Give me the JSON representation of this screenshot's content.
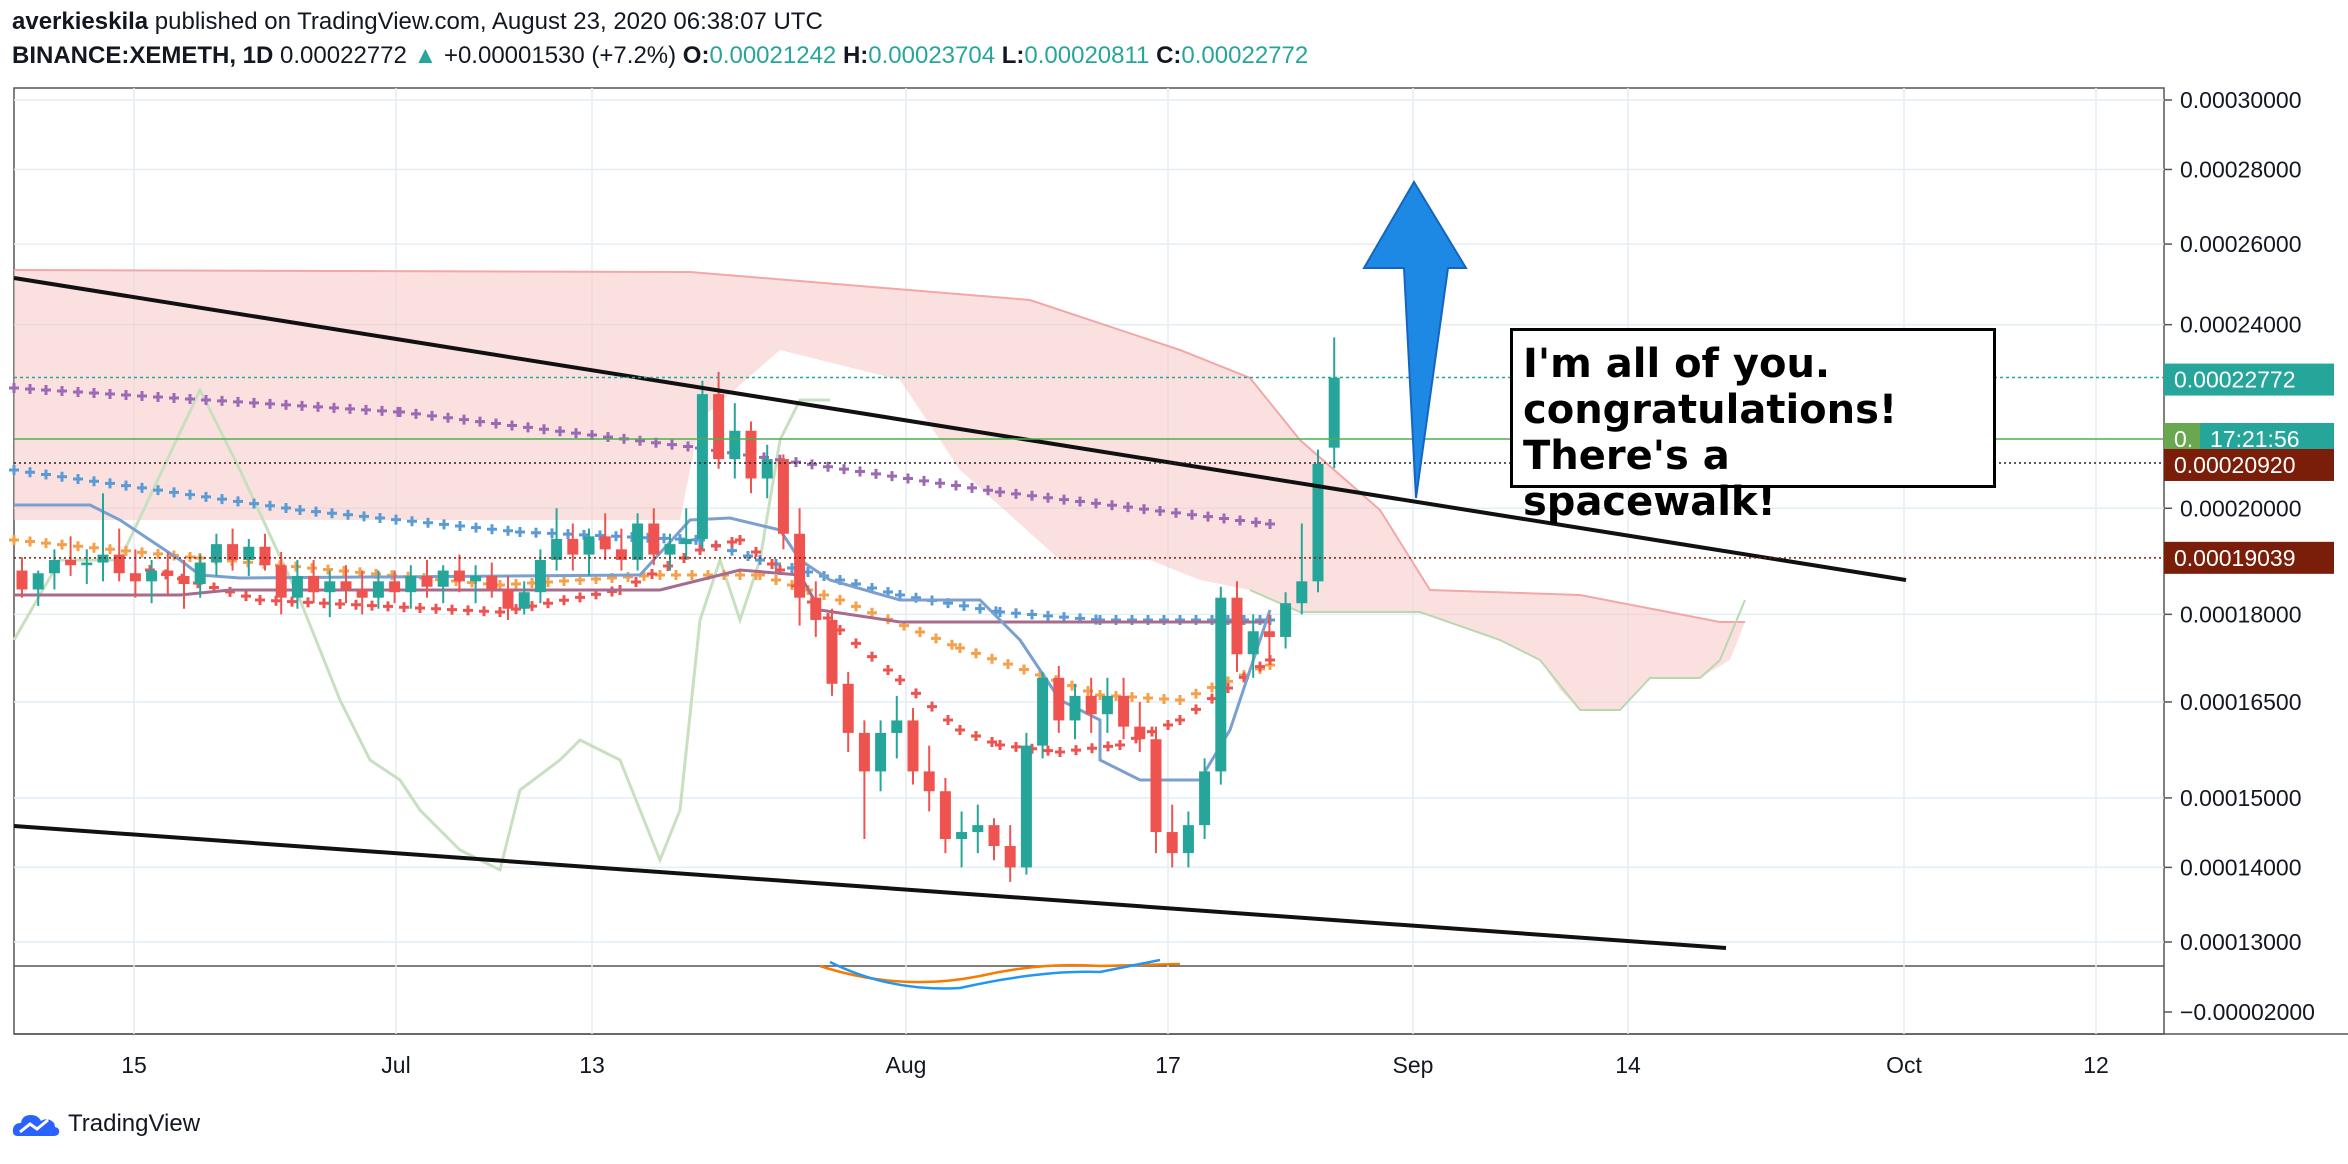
{
  "header": {
    "author": "averkieskila",
    "published": "published on TradingView.com, August 23, 2020 06:38:07 UTC",
    "symbol": "BINANCE:XEMETH, 1D",
    "price": "0.00022772",
    "change_arrow": "▲",
    "change": "+0.00001530 (+7.2%)",
    "o_label": "O:",
    "o": "0.00021242",
    "h_label": "H:",
    "h": "0.00023704",
    "l_label": "L:",
    "l": "0.00020811",
    "c_label": "C:",
    "c": "0.00022772"
  },
  "annotation": {
    "line1": "I'm all of you.",
    "line2": "congratulations!",
    "line3": "There's a spacewalk!"
  },
  "footer": {
    "brand": "TradingView",
    "logo_icon": "tradingview-cloud-icon"
  },
  "colors": {
    "up": "#26a69a",
    "down": "#ef5350",
    "cloud": "#f8c7c7",
    "purple": "#9c6ab5",
    "blue": "#5b9bd5",
    "orange": "#f5a04b",
    "red": "#ef5350",
    "arrow": "#1e88e5",
    "green_line": "#4caf50"
  },
  "chart_data": {
    "type": "candlestick",
    "y_axis": {
      "scale": "log",
      "ticks": [
        "0.00030000",
        "0.00028000",
        "0.00026000",
        "0.00024000",
        "0.00020000",
        "0.00018000",
        "0.00016500",
        "0.00015000",
        "0.00014000",
        "0.00013000"
      ],
      "price_labels": [
        {
          "text": "0.00022772",
          "value": 0.00022772,
          "bg": "#26a69a"
        },
        {
          "text": "0.",
          "value": 0.000215,
          "bg": "#6aa84f"
        },
        {
          "text": "17:21:56",
          "value": 0.000215,
          "bg": "#26a69a"
        },
        {
          "text": "0.00020920",
          "value": 0.0002092,
          "bg": "#7a1e0a"
        },
        {
          "text": "0.00019039",
          "value": 0.00019039,
          "bg": "#7a1e0a"
        }
      ]
    },
    "indicator_axis": {
      "ticks": [
        "−0.00002000"
      ]
    },
    "x_axis": {
      "ticks": [
        "15",
        "Jul",
        "13",
        "Aug",
        "17",
        "Sep",
        "14",
        "Oct",
        "12"
      ]
    },
    "candles": [
      {
        "o": 0.000188,
        "h": 0.0001905,
        "l": 0.000183,
        "c": 0.0001845
      },
      {
        "o": 0.0001845,
        "h": 0.000188,
        "l": 0.0001815,
        "c": 0.0001875
      },
      {
        "o": 0.0001875,
        "h": 0.000192,
        "l": 0.0001845,
        "c": 0.00019
      },
      {
        "o": 0.00019,
        "h": 0.0001945,
        "l": 0.000187,
        "c": 0.000189
      },
      {
        "o": 0.000189,
        "h": 0.000192,
        "l": 0.0001855,
        "c": 0.0001895
      },
      {
        "o": 0.0001895,
        "h": 0.000203,
        "l": 0.000186,
        "c": 0.000191
      },
      {
        "o": 0.000191,
        "h": 0.000196,
        "l": 0.000186,
        "c": 0.0001875
      },
      {
        "o": 0.0001875,
        "h": 0.000192,
        "l": 0.000183,
        "c": 0.000186
      },
      {
        "o": 0.000186,
        "h": 0.00019,
        "l": 0.000182,
        "c": 0.000188
      },
      {
        "o": 0.000188,
        "h": 0.0001915,
        "l": 0.0001835,
        "c": 0.000187
      },
      {
        "o": 0.000187,
        "h": 0.00019,
        "l": 0.000181,
        "c": 0.0001855
      },
      {
        "o": 0.0001855,
        "h": 0.000191,
        "l": 0.000183,
        "c": 0.0001895
      },
      {
        "o": 0.0001895,
        "h": 0.000195,
        "l": 0.000187,
        "c": 0.000193
      },
      {
        "o": 0.000193,
        "h": 0.000196,
        "l": 0.000188,
        "c": 0.00019
      },
      {
        "o": 0.00019,
        "h": 0.000194,
        "l": 0.000187,
        "c": 0.0001925
      },
      {
        "o": 0.0001925,
        "h": 0.000195,
        "l": 0.000188,
        "c": 0.000189
      },
      {
        "o": 0.000189,
        "h": 0.0001915,
        "l": 0.00018,
        "c": 0.000183
      },
      {
        "o": 0.000183,
        "h": 0.00019,
        "l": 0.000181,
        "c": 0.000187
      },
      {
        "o": 0.000187,
        "h": 0.00019,
        "l": 0.000182,
        "c": 0.000184
      },
      {
        "o": 0.000184,
        "h": 0.000188,
        "l": 0.0001795,
        "c": 0.000186
      },
      {
        "o": 0.000186,
        "h": 0.000189,
        "l": 0.000182,
        "c": 0.0001845
      },
      {
        "o": 0.0001845,
        "h": 0.000188,
        "l": 0.00018,
        "c": 0.000183
      },
      {
        "o": 0.000183,
        "h": 0.000188,
        "l": 0.000181,
        "c": 0.000186
      },
      {
        "o": 0.000186,
        "h": 0.000188,
        "l": 0.000182,
        "c": 0.000184
      },
      {
        "o": 0.000184,
        "h": 0.000189,
        "l": 0.000181,
        "c": 0.000187
      },
      {
        "o": 0.000187,
        "h": 0.00019,
        "l": 0.000183,
        "c": 0.000185
      },
      {
        "o": 0.000185,
        "h": 0.000189,
        "l": 0.000182,
        "c": 0.000188
      },
      {
        "o": 0.000188,
        "h": 0.000191,
        "l": 0.000184,
        "c": 0.000186
      },
      {
        "o": 0.000186,
        "h": 0.000189,
        "l": 0.000182,
        "c": 0.000187
      },
      {
        "o": 0.000187,
        "h": 0.0001895,
        "l": 0.000183,
        "c": 0.0001845
      },
      {
        "o": 0.0001845,
        "h": 0.000187,
        "l": 0.000179,
        "c": 0.000181
      },
      {
        "o": 0.000181,
        "h": 0.000186,
        "l": 0.00018,
        "c": 0.000184
      },
      {
        "o": 0.000184,
        "h": 0.000192,
        "l": 0.000182,
        "c": 0.00019
      },
      {
        "o": 0.00019,
        "h": 0.0002,
        "l": 0.000188,
        "c": 0.000194
      },
      {
        "o": 0.000194,
        "h": 0.000197,
        "l": 0.000188,
        "c": 0.000191
      },
      {
        "o": 0.000191,
        "h": 0.000196,
        "l": 0.000187,
        "c": 0.0001945
      },
      {
        "o": 0.0001945,
        "h": 0.000199,
        "l": 0.00019,
        "c": 0.000192
      },
      {
        "o": 0.000192,
        "h": 0.000196,
        "l": 0.000188,
        "c": 0.00019
      },
      {
        "o": 0.00019,
        "h": 0.000199,
        "l": 0.000188,
        "c": 0.000197
      },
      {
        "o": 0.000197,
        "h": 0.0002,
        "l": 0.000189,
        "c": 0.000191
      },
      {
        "o": 0.000191,
        "h": 0.000195,
        "l": 0.000188,
        "c": 0.000193
      },
      {
        "o": 0.000193,
        "h": 0.0002,
        "l": 0.00019,
        "c": 0.000194
      },
      {
        "o": 0.000194,
        "h": 0.000227,
        "l": 0.000192,
        "c": 0.000224
      },
      {
        "o": 0.000224,
        "h": 0.000229,
        "l": 0.000208,
        "c": 0.00021
      },
      {
        "o": 0.00021,
        "h": 0.000222,
        "l": 0.000206,
        "c": 0.000216
      },
      {
        "o": 0.000216,
        "h": 0.000218,
        "l": 0.000203,
        "c": 0.000206
      },
      {
        "o": 0.000206,
        "h": 0.000213,
        "l": 0.000202,
        "c": 0.00021
      },
      {
        "o": 0.00021,
        "h": 0.000211,
        "l": 0.000192,
        "c": 0.000195
      },
      {
        "o": 0.000195,
        "h": 0.0002,
        "l": 0.000178,
        "c": 0.000183
      },
      {
        "o": 0.000183,
        "h": 0.000186,
        "l": 0.000176,
        "c": 0.000179
      },
      {
        "o": 0.000179,
        "h": 0.000181,
        "l": 0.000166,
        "c": 0.000168
      },
      {
        "o": 0.000168,
        "h": 0.00017,
        "l": 0.000157,
        "c": 0.00016
      },
      {
        "o": 0.00016,
        "h": 0.000162,
        "l": 0.000144,
        "c": 0.000154
      },
      {
        "o": 0.000154,
        "h": 0.000162,
        "l": 0.000151,
        "c": 0.00016
      },
      {
        "o": 0.00016,
        "h": 0.000166,
        "l": 0.000156,
        "c": 0.000162
      },
      {
        "o": 0.000162,
        "h": 0.000164,
        "l": 0.000152,
        "c": 0.000154
      },
      {
        "o": 0.000154,
        "h": 0.000158,
        "l": 0.000148,
        "c": 0.000151
      },
      {
        "o": 0.000151,
        "h": 0.000153,
        "l": 0.000142,
        "c": 0.000144
      },
      {
        "o": 0.000144,
        "h": 0.000148,
        "l": 0.00014,
        "c": 0.000145
      },
      {
        "o": 0.000145,
        "h": 0.000149,
        "l": 0.000142,
        "c": 0.000146
      },
      {
        "o": 0.000146,
        "h": 0.000147,
        "l": 0.000141,
        "c": 0.000143
      },
      {
        "o": 0.000143,
        "h": 0.000146,
        "l": 0.000138,
        "c": 0.00014
      },
      {
        "o": 0.00014,
        "h": 0.00016,
        "l": 0.000139,
        "c": 0.000158
      },
      {
        "o": 0.000158,
        "h": 0.00017,
        "l": 0.000156,
        "c": 0.000169
      },
      {
        "o": 0.000169,
        "h": 0.000171,
        "l": 0.00016,
        "c": 0.000162
      },
      {
        "o": 0.000162,
        "h": 0.000168,
        "l": 0.000159,
        "c": 0.000166
      },
      {
        "o": 0.000166,
        "h": 0.000169,
        "l": 0.00016,
        "c": 0.000163
      },
      {
        "o": 0.000163,
        "h": 0.000169,
        "l": 0.00016,
        "c": 0.000166
      },
      {
        "o": 0.000166,
        "h": 0.000169,
        "l": 0.000159,
        "c": 0.000161
      },
      {
        "o": 0.000161,
        "h": 0.000165,
        "l": 0.000157,
        "c": 0.000159
      },
      {
        "o": 0.000159,
        "h": 0.000161,
        "l": 0.000142,
        "c": 0.000145
      },
      {
        "o": 0.000145,
        "h": 0.000149,
        "l": 0.00014,
        "c": 0.000142
      },
      {
        "o": 0.000142,
        "h": 0.000148,
        "l": 0.00014,
        "c": 0.000146
      },
      {
        "o": 0.000146,
        "h": 0.000156,
        "l": 0.000144,
        "c": 0.000154
      },
      {
        "o": 0.000154,
        "h": 0.000185,
        "l": 0.000152,
        "c": 0.000183
      },
      {
        "o": 0.000183,
        "h": 0.000186,
        "l": 0.00017,
        "c": 0.000173
      },
      {
        "o": 0.000173,
        "h": 0.00018,
        "l": 0.000169,
        "c": 0.000177
      },
      {
        "o": 0.000177,
        "h": 0.00018,
        "l": 0.000172,
        "c": 0.000176
      },
      {
        "o": 0.000176,
        "h": 0.000184,
        "l": 0.000174,
        "c": 0.000182
      },
      {
        "o": 0.000182,
        "h": 0.000197,
        "l": 0.00018,
        "c": 0.000186
      },
      {
        "o": 0.000186,
        "h": 0.000212,
        "l": 0.000184,
        "c": 0.000209
      },
      {
        "o": 0.0002124,
        "h": 0.000237,
        "l": 0.0002081,
        "c": 0.0002277
      }
    ]
  }
}
